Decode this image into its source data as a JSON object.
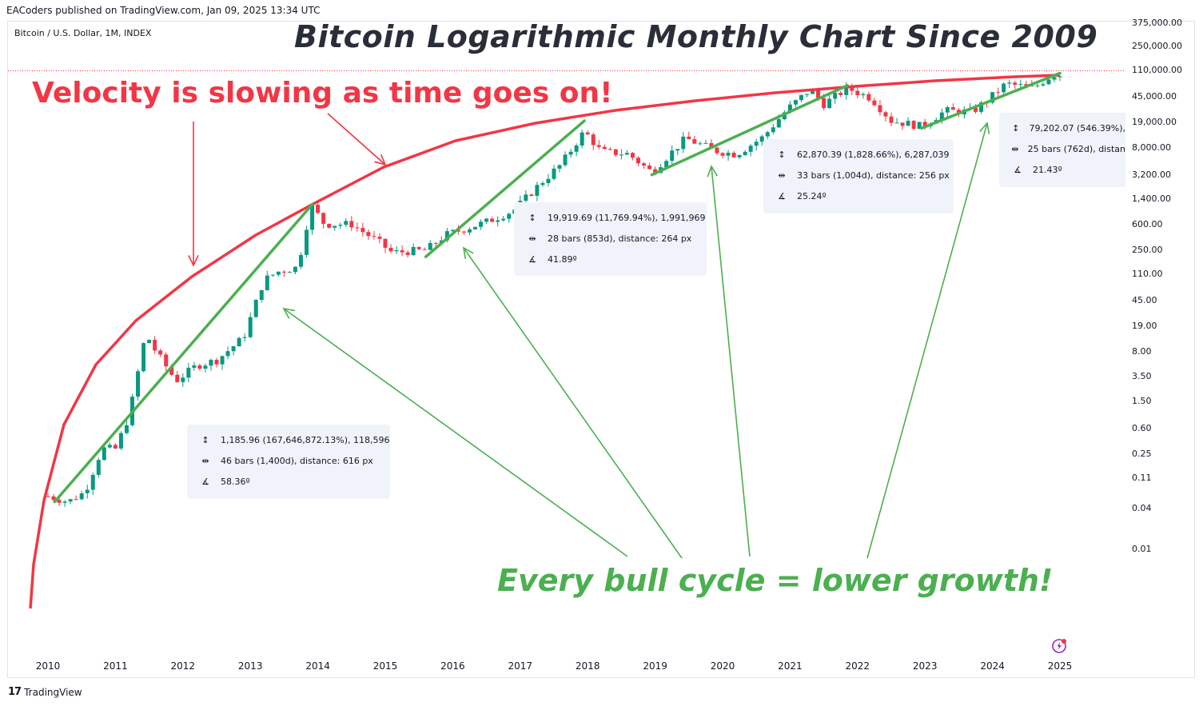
{
  "header": {
    "published": "EACoders published on TradingView.com, Jan 09, 2025 13:34 UTC",
    "symbol": "Bitcoin / U.S. Dollar, 1M, INDEX"
  },
  "annotations": {
    "title": "Bitcoin Logarithmic Monthly Chart Since 2009",
    "velocity": "Velocity is slowing as time goes on!",
    "bull": "Every bull cycle = lower growth!"
  },
  "colors": {
    "up": "#089981",
    "down": "#f23645",
    "trend": "#4caf50",
    "curve": "#f23645",
    "annotation_red": "#f23645",
    "annotation_green": "#4caf50",
    "stats_bg": "#f0f3fa"
  },
  "stats_boxes": [
    {
      "range": "1,185.96 (167,646,872.13%), 118,596",
      "bars": "46 bars (1,400d), distance: 616 px",
      "angle": "58.36º"
    },
    {
      "range": "19,919.69 (11,769.94%), 1,991,969",
      "bars": "28 bars (853d), distance: 264 px",
      "angle": "41.89º"
    },
    {
      "range": "62,870.39 (1,828.66%), 6,287,039",
      "bars": "33 bars (1,004d), distance: 256 px",
      "angle": "25.24º"
    },
    {
      "range": "79,202.07 (546.39%),",
      "bars": "25 bars (762d), distan",
      "angle": "21.43º"
    }
  ],
  "footer": {
    "brand": "TradingView",
    "logo": "17"
  },
  "chart_data": {
    "type": "candlestick",
    "title": "Bitcoin Logarithmic Monthly Chart Since 2009",
    "symbol": "Bitcoin / U.S. Dollar, 1M, INDEX",
    "scale": "log",
    "y_ticks": [
      "375,000.00",
      "250,000.00",
      "110,000.00",
      "45,000.00",
      "19,000.00",
      "8,000.00",
      "3,200.00",
      "1,400.00",
      "600.00",
      "250.00",
      "110.00",
      "45.00",
      "19.00",
      "8.00",
      "3.50",
      "1.50",
      "0.60",
      "0.25",
      "0.11",
      "0.04",
      "0.01"
    ],
    "y_tick_values": [
      375000,
      250000,
      110000,
      45000,
      19000,
      8000,
      3200,
      1400,
      600,
      250,
      110,
      45,
      19,
      8,
      3.5,
      1.5,
      0.6,
      0.25,
      0.11,
      0.04,
      0.01
    ],
    "x_ticks": [
      "2010",
      "2011",
      "2012",
      "2013",
      "2014",
      "2015",
      "2016",
      "2017",
      "2018",
      "2019",
      "2020",
      "2021",
      "2022",
      "2023",
      "2024",
      "2025"
    ],
    "ylim": [
      0.003,
      400000
    ],
    "xlim": [
      2009.9,
      2025.15
    ],
    "current_price_line": 100000,
    "key_points": [
      {
        "t": 2010.0,
        "close": 0.06
      },
      {
        "t": 2010.3,
        "close": 0.05
      },
      {
        "t": 2010.55,
        "close": 0.07
      },
      {
        "t": 2010.8,
        "close": 0.3
      },
      {
        "t": 2011.0,
        "close": 0.3
      },
      {
        "t": 2011.2,
        "close": 0.9
      },
      {
        "t": 2011.45,
        "close": 15
      },
      {
        "t": 2011.6,
        "close": 8
      },
      {
        "t": 2011.9,
        "close": 3
      },
      {
        "t": 2012.2,
        "close": 5
      },
      {
        "t": 2012.5,
        "close": 6
      },
      {
        "t": 2012.9,
        "close": 13
      },
      {
        "t": 2013.2,
        "close": 90
      },
      {
        "t": 2013.4,
        "close": 120
      },
      {
        "t": 2013.7,
        "close": 140
      },
      {
        "t": 2013.9,
        "close": 1150
      },
      {
        "t": 2014.1,
        "close": 600
      },
      {
        "t": 2014.5,
        "close": 600
      },
      {
        "t": 2014.9,
        "close": 330
      },
      {
        "t": 2015.1,
        "close": 230
      },
      {
        "t": 2015.6,
        "close": 250
      },
      {
        "t": 2015.9,
        "close": 420
      },
      {
        "t": 2016.5,
        "close": 650
      },
      {
        "t": 2016.9,
        "close": 950
      },
      {
        "t": 2017.3,
        "close": 2400
      },
      {
        "t": 2017.6,
        "close": 4500
      },
      {
        "t": 2017.95,
        "close": 14000
      },
      {
        "t": 2018.2,
        "close": 7000
      },
      {
        "t": 2018.6,
        "close": 6500
      },
      {
        "t": 2018.95,
        "close": 3500
      },
      {
        "t": 2019.45,
        "close": 11000
      },
      {
        "t": 2019.9,
        "close": 7200
      },
      {
        "t": 2020.2,
        "close": 6400
      },
      {
        "t": 2020.6,
        "close": 11500
      },
      {
        "t": 2020.95,
        "close": 29000
      },
      {
        "t": 2021.3,
        "close": 58000
      },
      {
        "t": 2021.5,
        "close": 35000
      },
      {
        "t": 2021.85,
        "close": 60000
      },
      {
        "t": 2022.2,
        "close": 43000
      },
      {
        "t": 2022.5,
        "close": 20000
      },
      {
        "t": 2022.95,
        "close": 16500
      },
      {
        "t": 2023.3,
        "close": 28000
      },
      {
        "t": 2023.7,
        "close": 27000
      },
      {
        "t": 2023.95,
        "close": 42000
      },
      {
        "t": 2024.2,
        "close": 70000
      },
      {
        "t": 2024.6,
        "close": 60000
      },
      {
        "t": 2024.9,
        "close": 96000
      },
      {
        "t": 2025.0,
        "close": 94000
      }
    ],
    "trend_lines": [
      {
        "from": [
          2010.1,
          0.05
        ],
        "to": [
          2013.92,
          1185
        ]
      },
      {
        "from": [
          2015.6,
          200
        ],
        "to": [
          2017.95,
          19900
        ]
      },
      {
        "from": [
          2018.95,
          3200
        ],
        "to": [
          2021.85,
          66000
        ]
      },
      {
        "from": [
          2022.95,
          15500
        ],
        "to": [
          2025.0,
          100000
        ]
      }
    ],
    "ceiling_curve": "Red logarithmic ceiling curve touching cycle tops from 2010 to 2025",
    "legend": "none",
    "grid": false
  }
}
